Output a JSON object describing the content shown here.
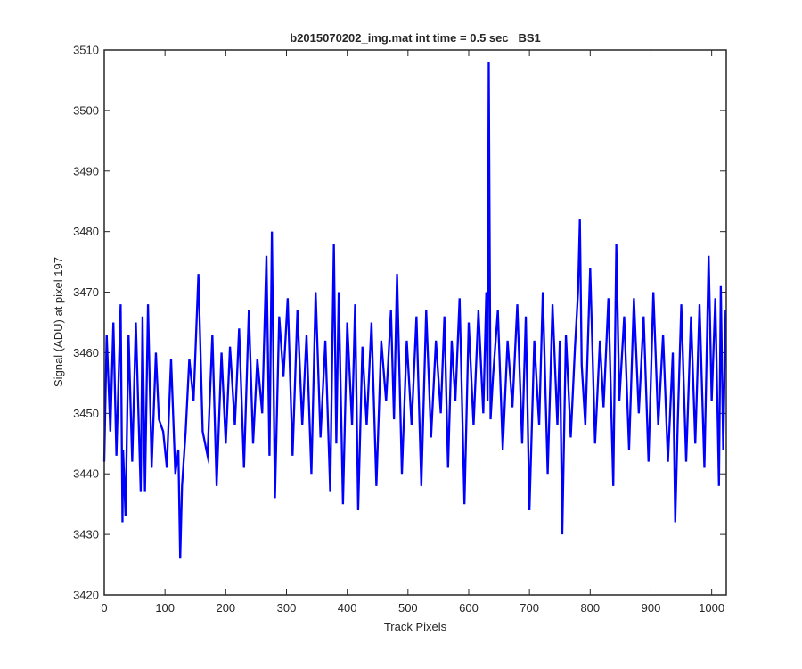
{
  "chart_data": {
    "type": "line",
    "title": "b2015070202_img.mat int time = 0.5 sec   BS1",
    "xlabel": "Track Pixels",
    "ylabel": "Signal (ADU) at pixel 197",
    "xlim": [
      0,
      1024
    ],
    "ylim": [
      3420,
      3510
    ],
    "xticks": [
      0,
      100,
      200,
      300,
      400,
      500,
      600,
      700,
      800,
      900,
      1000
    ],
    "yticks": [
      3420,
      3430,
      3440,
      3450,
      3460,
      3470,
      3480,
      3490,
      3500,
      3510
    ],
    "grid": false,
    "legend": "none",
    "series": [
      {
        "color": "#0000ff",
        "x": [
          0,
          4,
          10,
          15,
          20,
          27,
          30,
          31,
          35,
          40,
          46,
          52,
          60,
          63,
          67,
          72,
          78,
          85,
          90,
          97,
          103,
          110,
          117,
          122,
          125,
          128,
          134,
          140,
          147,
          155,
          162,
          170,
          178,
          185,
          193,
          200,
          207,
          215,
          222,
          230,
          238,
          245,
          252,
          260,
          267,
          272,
          276,
          281,
          288,
          295,
          302,
          310,
          318,
          326,
          333,
          341,
          348,
          356,
          364,
          372,
          378,
          382,
          386,
          393,
          400,
          408,
          413,
          418,
          425,
          432,
          440,
          448,
          456,
          464,
          472,
          477,
          482,
          490,
          498,
          506,
          514,
          522,
          530,
          538,
          546,
          554,
          560,
          566,
          572,
          578,
          585,
          593,
          600,
          608,
          616,
          624,
          629,
          631,
          633,
          636,
          640,
          648,
          656,
          664,
          672,
          680,
          688,
          694,
          700,
          708,
          716,
          722,
          730,
          738,
          746,
          750,
          754,
          760,
          768,
          775,
          780,
          783,
          786,
          792,
          800,
          808,
          816,
          822,
          830,
          838,
          843,
          848,
          856,
          864,
          872,
          880,
          888,
          896,
          904,
          912,
          920,
          928,
          936,
          940,
          944,
          950,
          958,
          966,
          973,
          980,
          988,
          995,
          1000,
          1006,
          1012,
          1015,
          1019,
          1023
        ],
        "y": [
          3442,
          3463,
          3447,
          3465,
          3443,
          3468,
          3432,
          3444,
          3433,
          3463,
          3442,
          3465,
          3437,
          3466,
          3437,
          3468,
          3441,
          3460,
          3449,
          3447,
          3441,
          3459,
          3440,
          3444,
          3426,
          3438,
          3447,
          3459,
          3452,
          3473,
          3447,
          3443,
          3463,
          3438,
          3460,
          3445,
          3461,
          3448,
          3464,
          3441,
          3467,
          3445,
          3459,
          3450,
          3476,
          3443,
          3480,
          3436,
          3466,
          3456,
          3469,
          3443,
          3467,
          3448,
          3463,
          3440,
          3470,
          3446,
          3462,
          3437,
          3478,
          3445,
          3470,
          3435,
          3465,
          3448,
          3468,
          3434,
          3461,
          3448,
          3465,
          3438,
          3462,
          3452,
          3467,
          3449,
          3473,
          3440,
          3462,
          3448,
          3466,
          3438,
          3467,
          3446,
          3462,
          3450,
          3466,
          3441,
          3462,
          3452,
          3469,
          3435,
          3465,
          3448,
          3467,
          3450,
          3470,
          3452,
          3508,
          3449,
          3456,
          3467,
          3444,
          3462,
          3451,
          3468,
          3445,
          3466,
          3434,
          3462,
          3448,
          3470,
          3440,
          3468,
          3448,
          3462,
          3430,
          3463,
          3446,
          3461,
          3470,
          3482,
          3458,
          3448,
          3474,
          3445,
          3462,
          3451,
          3469,
          3438,
          3478,
          3452,
          3466,
          3444,
          3469,
          3450,
          3466,
          3442,
          3470,
          3448,
          3463,
          3442,
          3460,
          3432,
          3448,
          3468,
          3442,
          3466,
          3445,
          3468,
          3441,
          3476,
          3452,
          3469,
          3438,
          3471,
          3444,
          3467
        ]
      }
    ]
  }
}
